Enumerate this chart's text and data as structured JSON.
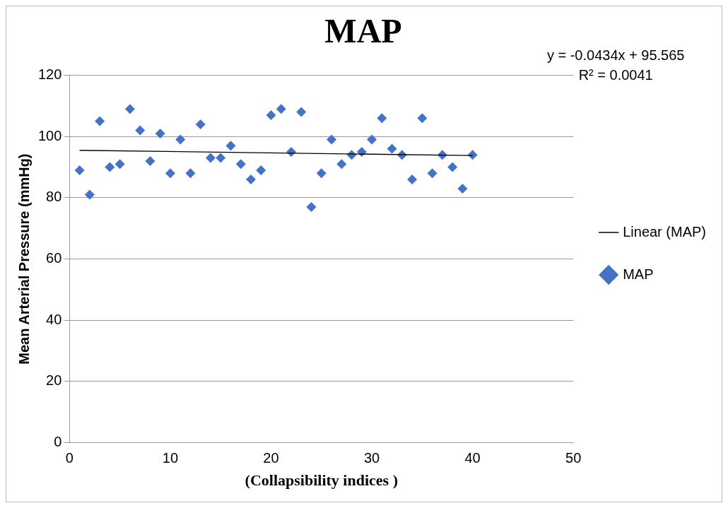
{
  "chart_data": {
    "type": "scatter",
    "title": "MAP",
    "xlabel": "(Collapsibility indices )",
    "ylabel": "Mean Arterial Pressure (mmHg)",
    "x": [
      1,
      2,
      3,
      4,
      5,
      6,
      7,
      8,
      9,
      10,
      11,
      12,
      13,
      14,
      15,
      16,
      17,
      18,
      19,
      20,
      21,
      22,
      23,
      24,
      25,
      26,
      27,
      28,
      29,
      30,
      31,
      32,
      33,
      34,
      35,
      36,
      37,
      38,
      39,
      40
    ],
    "series": [
      {
        "name": "MAP",
        "color": "#4472c4",
        "marker": "diamond",
        "values": [
          89,
          81,
          105,
          90,
          91,
          109,
          102,
          92,
          101,
          88,
          99,
          88,
          104,
          93,
          93,
          97,
          91,
          86,
          89,
          107,
          109,
          95,
          108,
          77,
          88,
          99,
          91,
          94,
          95,
          99,
          106,
          96,
          94,
          86,
          106,
          88,
          94,
          90,
          83,
          94
        ]
      },
      {
        "name": "Linear (MAP)",
        "type": "line",
        "color": "#000000",
        "marker": "none",
        "x": [
          1,
          40
        ],
        "values": [
          95.5,
          93.8
        ]
      }
    ],
    "xlim": [
      0,
      50
    ],
    "xticks": [
      0,
      10,
      20,
      30,
      40,
      50
    ],
    "ylim": [
      0,
      120
    ],
    "yticks": [
      0,
      20,
      40,
      60,
      80,
      100,
      120
    ],
    "grid": "y",
    "legend": "right",
    "annotations": [
      "y = -0.0434x + 95.565",
      "R² = 0.0041"
    ]
  }
}
